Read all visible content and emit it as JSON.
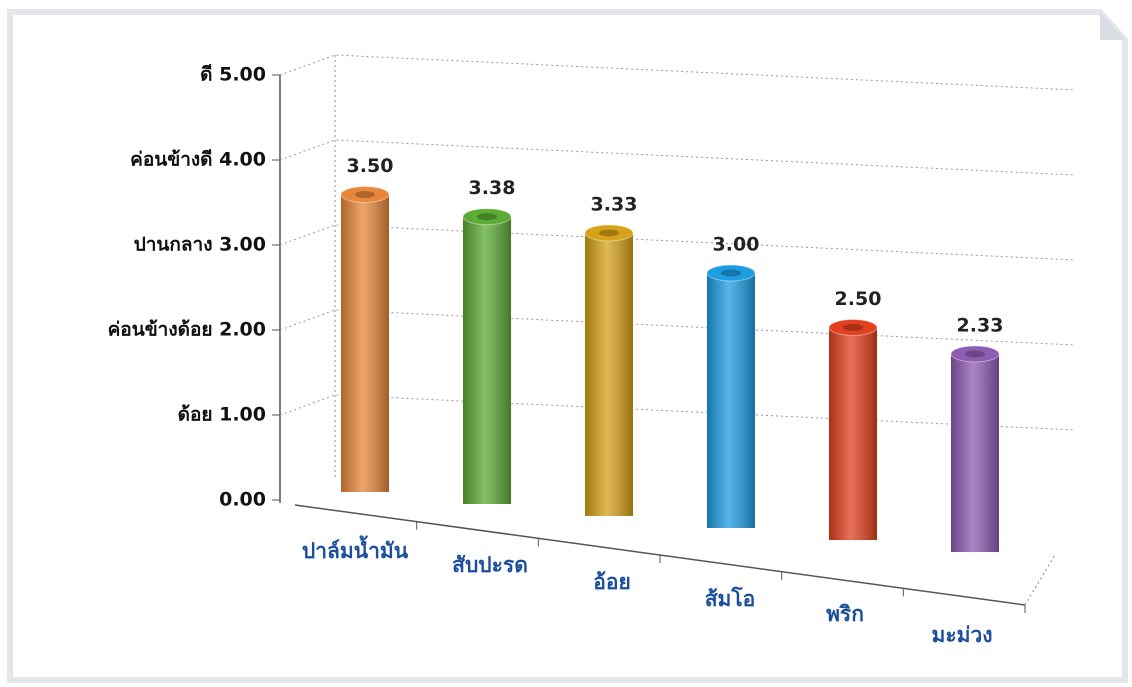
{
  "chart_data": {
    "type": "bar",
    "categories": [
      "ปาล์มน้ำมัน",
      "สับปะรด",
      "อ้อย",
      "ส้มโอ",
      "พริก",
      "มะม่วง"
    ],
    "values": [
      3.5,
      3.38,
      3.33,
      3.0,
      2.5,
      2.33
    ],
    "value_labels": [
      "3.50",
      "3.38",
      "3.33",
      "3.00",
      "2.50",
      "2.33"
    ],
    "colors": [
      "#e8873a",
      "#5cab34",
      "#d6a21a",
      "#1f9de2",
      "#e2401f",
      "#8f5cb3"
    ],
    "ylim": [
      0,
      5
    ],
    "yticks": [
      {
        "value": 0,
        "label": "0.00"
      },
      {
        "value": 1,
        "label": "ด้อย  1.00"
      },
      {
        "value": 2,
        "label": "ค่อนข้างด้อย  2.00"
      },
      {
        "value": 3,
        "label": "ปานกลาง  3.00"
      },
      {
        "value": 4,
        "label": "ค่อนข้างดี  4.00"
      },
      {
        "value": 5,
        "label": "ดี  5.00"
      }
    ],
    "grid": true
  }
}
